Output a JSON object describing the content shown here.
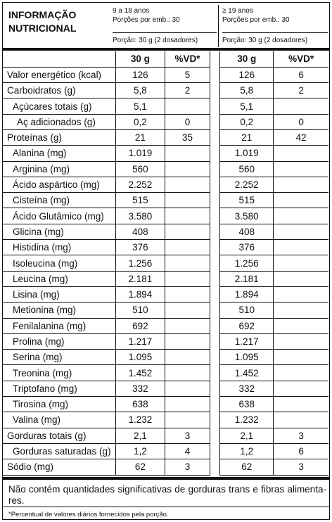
{
  "header": {
    "title_line1": "INFORMAÇÃO",
    "title_line2": "NUTRICIONAL",
    "groups": [
      {
        "age": "9 a 18 anos",
        "servings": "Porções por emb.: 30",
        "portion": "Porção: 30 g (2 dosadores)"
      },
      {
        "age": "≥ 19 anos",
        "servings": "Porções por emb.: 30",
        "portion": "Porção: 30 g (2 dosadores)"
      }
    ]
  },
  "columns": {
    "qty": "30 g",
    "vd": "%VD*"
  },
  "rows": [
    {
      "label": "Valor energético (kcal)",
      "indent": 0,
      "q1": "126",
      "v1": "5",
      "q2": "126",
      "v2": "6"
    },
    {
      "label": "Carboidratos (g)",
      "indent": 0,
      "q1": "5,8",
      "v1": "2",
      "q2": "5,8",
      "v2": "2"
    },
    {
      "label": "Açúcares totais (g)",
      "indent": 1,
      "q1": "5,1",
      "v1": "",
      "q2": "5,1",
      "v2": ""
    },
    {
      "label": "Aç adicionados (g)",
      "indent": 2,
      "q1": "0,2",
      "v1": "0",
      "q2": "0,2",
      "v2": "0"
    },
    {
      "label": "Proteínas (g)",
      "indent": 0,
      "q1": "21",
      "v1": "35",
      "q2": "21",
      "v2": "42"
    },
    {
      "label": "Alanina (mg)",
      "indent": 1,
      "q1": "1.019",
      "v1": "",
      "q2": "1.019",
      "v2": ""
    },
    {
      "label": "Arginina (mg)",
      "indent": 1,
      "q1": "560",
      "v1": "",
      "q2": "560",
      "v2": ""
    },
    {
      "label": "Ácido aspártico (mg)",
      "indent": 1,
      "q1": "2.252",
      "v1": "",
      "q2": "2.252",
      "v2": ""
    },
    {
      "label": "Cisteína (mg)",
      "indent": 1,
      "q1": "515",
      "v1": "",
      "q2": "515",
      "v2": ""
    },
    {
      "label": "Ácido Glutâmico (mg)",
      "indent": 1,
      "q1": "3.580",
      "v1": "",
      "q2": "3.580",
      "v2": ""
    },
    {
      "label": "Glicina (mg)",
      "indent": 1,
      "q1": "408",
      "v1": "",
      "q2": "408",
      "v2": ""
    },
    {
      "label": "Histidina (mg)",
      "indent": 1,
      "q1": "376",
      "v1": "",
      "q2": "376",
      "v2": ""
    },
    {
      "label": "Isoleucina (mg)",
      "indent": 1,
      "q1": "1.256",
      "v1": "",
      "q2": "1.256",
      "v2": ""
    },
    {
      "label": "Leucina (mg)",
      "indent": 1,
      "q1": "2.181",
      "v1": "",
      "q2": "2.181",
      "v2": ""
    },
    {
      "label": "Lisina (mg)",
      "indent": 1,
      "q1": "1.894",
      "v1": "",
      "q2": "1.894",
      "v2": ""
    },
    {
      "label": "Metionina (mg)",
      "indent": 1,
      "q1": "510",
      "v1": "",
      "q2": "510",
      "v2": ""
    },
    {
      "label": "Fenilalanina (mg)",
      "indent": 1,
      "q1": "692",
      "v1": "",
      "q2": "692",
      "v2": ""
    },
    {
      "label": "Prolina (mg)",
      "indent": 1,
      "q1": "1.217",
      "v1": "",
      "q2": "1.217",
      "v2": ""
    },
    {
      "label": "Serina (mg)",
      "indent": 1,
      "q1": "1.095",
      "v1": "",
      "q2": "1.095",
      "v2": ""
    },
    {
      "label": "Treonina (mg)",
      "indent": 1,
      "q1": "1.452",
      "v1": "",
      "q2": "1.452",
      "v2": ""
    },
    {
      "label": "Triptofano (mg)",
      "indent": 1,
      "q1": "332",
      "v1": "",
      "q2": "332",
      "v2": ""
    },
    {
      "label": "Tirosina (mg)",
      "indent": 1,
      "q1": "638",
      "v1": "",
      "q2": "638",
      "v2": ""
    },
    {
      "label": "Valina (mg)",
      "indent": 1,
      "q1": "1.232",
      "v1": "",
      "q2": "1.232",
      "v2": ""
    },
    {
      "label": "Gorduras totais (g)",
      "indent": 0,
      "q1": "2,1",
      "v1": "3",
      "q2": "2,1",
      "v2": "3"
    },
    {
      "label": "Gorduras saturadas (g)",
      "indent": 1,
      "q1": "1,2",
      "v1": "4",
      "q2": "1,2",
      "v2": "6"
    },
    {
      "label": "Sódio (mg)",
      "indent": 0,
      "q1": "62",
      "v1": "3",
      "q2": "62",
      "v2": "3"
    }
  ],
  "note": "Não contém quantidades significativas de gorduras trans e fibras alimenta-res.",
  "footnote": "*Percentual de valores diários fornecidos pela porção."
}
